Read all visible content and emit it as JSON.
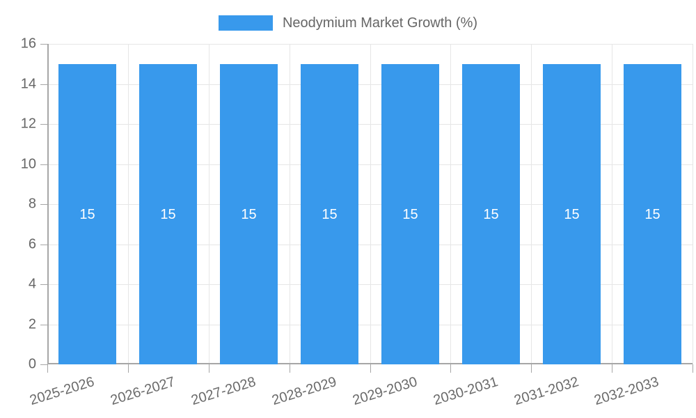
{
  "legend": {
    "label": "Neodymium Market Growth (%)"
  },
  "chart_data": {
    "type": "bar",
    "title": "",
    "xlabel": "",
    "ylabel": "",
    "categories": [
      "2025-2026",
      "2026-2027",
      "2027-2028",
      "2028-2029",
      "2029-2030",
      "2030-2031",
      "2031-2032",
      "2032-2033"
    ],
    "values": [
      15,
      15,
      15,
      15,
      15,
      15,
      15,
      15
    ],
    "bar_labels_shown": true,
    "y_ticks": [
      0,
      2,
      4,
      6,
      8,
      10,
      12,
      14,
      16
    ],
    "ylim": [
      0,
      16
    ],
    "grid": "on",
    "legend_position": "top-center",
    "legend_entries": [
      "Neodymium Market Growth (%)"
    ],
    "colors": {
      "bar": "#3899ec",
      "grid": "#e6e6e6",
      "axis": "#a6a6a6",
      "tick_text": "#666666",
      "bar_label_text": "#ffffff",
      "legend_text": "#666666"
    }
  }
}
